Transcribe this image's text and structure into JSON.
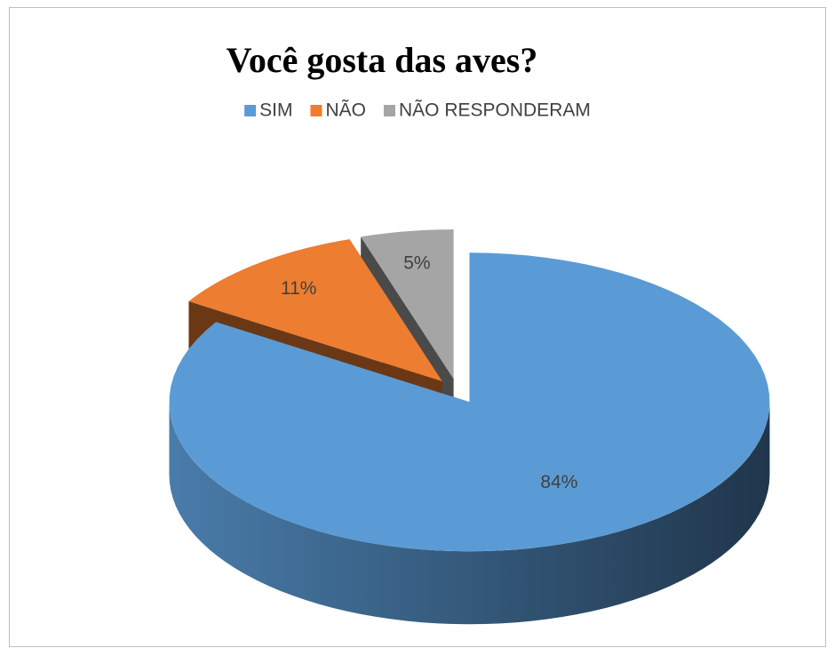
{
  "chart_data": {
    "type": "pie3d",
    "title": "Você gosta das aves?",
    "categories": [
      "SIM",
      "NÃO",
      "NÃO RESPONDERAM"
    ],
    "values": [
      84,
      11,
      5
    ],
    "value_labels": [
      "84%",
      "11%",
      "5%"
    ],
    "colors": [
      "#5B9BD5",
      "#ED7D31",
      "#A5A5A5"
    ],
    "legend": "top"
  }
}
